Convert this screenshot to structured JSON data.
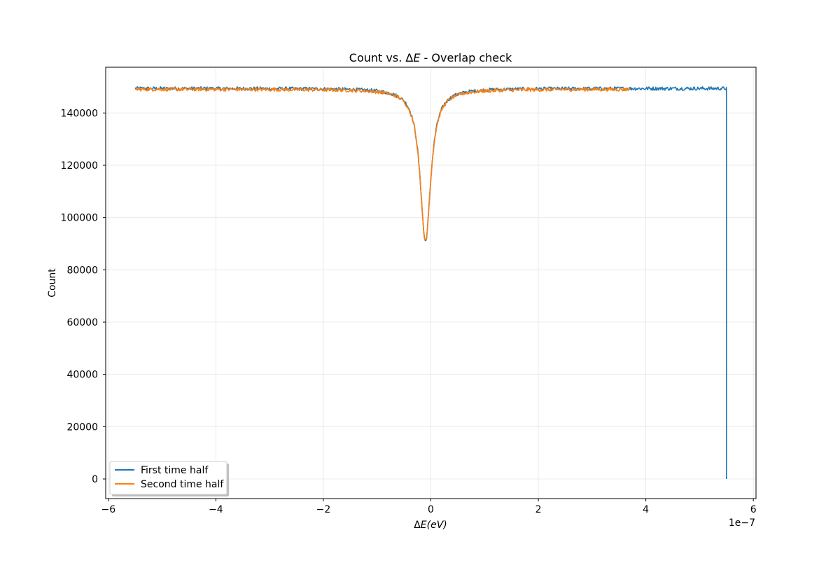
{
  "chart_data": {
    "type": "line",
    "title_prefix": "Count vs. Δ",
    "title_var": "E",
    "title_suffix": " - Overlap check",
    "xlabel_prefix": "Δ",
    "xlabel_var": "E(eV)",
    "ylabel": "Count",
    "x_offset_text": "1e−7",
    "x_scale": 1e-07,
    "xlim": [
      -6.05,
      6.05
    ],
    "ylim": [
      -7500,
      157500
    ],
    "xticks": [
      -6,
      -4,
      -2,
      0,
      2,
      4,
      6
    ],
    "xtick_labels": [
      "−6",
      "−4",
      "−2",
      "0",
      "2",
      "4",
      "6"
    ],
    "yticks": [
      0,
      20000,
      40000,
      60000,
      80000,
      100000,
      120000,
      140000
    ],
    "ytick_labels": [
      "0",
      "20000",
      "40000",
      "60000",
      "80000",
      "100000",
      "120000",
      "140000"
    ],
    "grid": true,
    "legend_location": "lower left",
    "series": [
      {
        "name": "First time half",
        "color": "#1f77b4",
        "x_range": [
          -5.5,
          5.5
        ],
        "baseline": 149400,
        "dip_center": -0.1,
        "dip_depth": 58500,
        "dip_width": 0.12,
        "endpoint_drop": [
          5.5,
          0
        ]
      },
      {
        "name": "Second time half",
        "color": "#ff7f0e",
        "x_range": [
          -5.5,
          3.7
        ],
        "baseline": 149100,
        "dip_center": -0.1,
        "dip_depth": 58300,
        "dip_width": 0.12
      }
    ]
  }
}
